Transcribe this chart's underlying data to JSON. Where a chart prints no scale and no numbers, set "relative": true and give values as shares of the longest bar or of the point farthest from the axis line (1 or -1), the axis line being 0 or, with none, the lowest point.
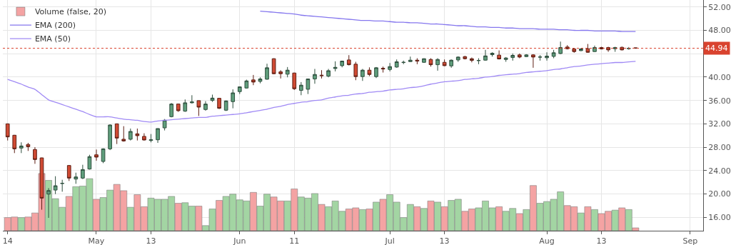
{
  "chart_data": [
    {
      "type": "candlestick",
      "categories": [
        "14",
        null,
        null,
        null,
        null,
        null,
        null,
        null,
        null,
        null,
        null,
        null,
        null,
        "May",
        null,
        null,
        null,
        null,
        null,
        null,
        null,
        "13",
        null,
        null,
        null,
        null,
        null,
        null,
        null,
        null,
        null,
        null,
        null,
        null,
        "Jun",
        null,
        null,
        null,
        null,
        null,
        null,
        null,
        "11",
        null,
        null,
        null,
        null,
        null,
        null,
        null,
        null,
        null,
        null,
        null,
        null,
        null,
        "Jul",
        null,
        null,
        null,
        null,
        null,
        null,
        null,
        "13",
        null,
        null,
        null,
        null,
        null,
        null,
        null,
        null,
        null,
        null,
        null,
        null,
        null,
        null,
        "Aug",
        null,
        null,
        null,
        null,
        null,
        null,
        null,
        "13",
        null,
        null,
        null,
        null,
        null,
        null,
        null,
        null,
        null,
        null,
        null,
        null,
        "Sep",
        null
      ],
      "ohlc": [
        [
          32.0,
          32.05,
          29.15,
          29.76
        ],
        [
          30.05,
          30.1,
          26.99,
          27.72
        ],
        [
          27.85,
          28.83,
          26.99,
          28.21
        ],
        [
          28.46,
          28.74,
          27.36,
          28.09
        ],
        [
          27.6,
          28.0,
          25.15,
          25.89
        ],
        [
          26.17,
          26.2,
          17.3,
          19.28
        ],
        [
          19.97,
          20.99,
          15.9,
          20.58
        ],
        [
          20.66,
          23.03,
          19.97,
          21.4
        ],
        [
          21.78,
          22.42,
          20.38,
          21.82
        ],
        [
          24.87,
          24.9,
          22.22,
          22.71
        ],
        [
          22.54,
          23.64,
          21.73,
          22.91
        ],
        [
          22.71,
          24.99,
          22.54,
          24.17
        ],
        [
          24.26,
          26.7,
          24.17,
          26.38
        ],
        [
          26.7,
          27.6,
          25.68,
          26.3
        ],
        [
          25.56,
          27.8,
          25.27,
          27.72
        ],
        [
          27.72,
          31.9,
          27.5,
          31.8
        ],
        [
          32.0,
          32.05,
          28.54,
          29.56
        ],
        [
          29.36,
          31.6,
          28.95,
          29.07
        ],
        [
          29.36,
          31.19,
          29.15,
          30.7
        ],
        [
          30.29,
          31.19,
          29.15,
          29.97
        ],
        [
          29.85,
          30.38,
          29.15,
          29.23
        ],
        [
          29.15,
          30.25,
          28.83,
          29.27
        ],
        [
          29.27,
          31.2,
          28.74,
          31.19
        ],
        [
          31.31,
          32.82,
          30.87,
          32.62
        ],
        [
          33.23,
          35.56,
          33.11,
          35.39
        ],
        [
          35.39,
          35.45,
          34.05,
          34.25
        ],
        [
          34.17,
          36.17,
          34.05,
          35.6
        ],
        [
          35.6,
          36.9,
          35.48,
          35.76
        ],
        [
          35.97,
          36.0,
          33.35,
          34.86
        ],
        [
          34.45,
          35.88,
          34.25,
          35.39
        ],
        [
          36.0,
          37.0,
          35.76,
          36.41
        ],
        [
          36.37,
          36.4,
          34.54,
          34.66
        ],
        [
          34.33,
          36.0,
          34.2,
          35.92
        ],
        [
          35.8,
          37.9,
          34.66,
          37.3
        ],
        [
          37.52,
          38.4,
          37.1,
          38.33
        ],
        [
          38.13,
          39.56,
          38.05,
          39.35
        ],
        [
          39.52,
          40.37,
          38.62,
          39.15
        ],
        [
          39.27,
          39.96,
          38.94,
          39.68
        ],
        [
          39.64,
          42.29,
          39.56,
          41.6
        ],
        [
          43.15,
          43.2,
          40.5,
          40.58
        ],
        [
          40.9,
          41.19,
          39.76,
          40.58
        ],
        [
          40.5,
          41.72,
          39.96,
          41.19
        ],
        [
          40.7,
          40.75,
          37.8,
          38.01
        ],
        [
          37.72,
          39.15,
          36.9,
          38.62
        ],
        [
          37.92,
          39.7,
          37.1,
          39.68
        ],
        [
          39.68,
          41.4,
          38.86,
          40.45
        ],
        [
          40.33,
          41.19,
          39.76,
          40.25
        ],
        [
          40.17,
          41.4,
          39.96,
          41.1
        ],
        [
          41.47,
          42.7,
          40.98,
          41.67
        ],
        [
          41.96,
          42.82,
          41.67,
          42.74
        ],
        [
          42.94,
          43.76,
          42.0,
          42.12
        ],
        [
          42.21,
          42.62,
          39.47,
          40.09
        ],
        [
          40.09,
          41.4,
          39.35,
          41.19
        ],
        [
          41.19,
          41.67,
          40.17,
          40.45
        ],
        [
          40.09,
          41.72,
          39.84,
          41.6
        ],
        [
          41.51,
          41.8,
          40.78,
          41.39
        ],
        [
          41.31,
          42.41,
          40.98,
          41.8
        ],
        [
          41.72,
          43.02,
          41.6,
          42.62
        ],
        [
          42.49,
          42.82,
          42.21,
          42.53
        ],
        [
          42.66,
          43.51,
          42.62,
          42.9
        ],
        [
          42.9,
          43.23,
          42.21,
          42.74
        ],
        [
          42.53,
          43.2,
          42.45,
          43.15
        ],
        [
          43.02,
          43.23,
          41.8,
          42.12
        ],
        [
          42.12,
          43.23,
          41.1,
          43.02
        ],
        [
          42.53,
          43.02,
          41.88,
          41.96
        ],
        [
          41.92,
          43.02,
          41.6,
          42.9
        ],
        [
          42.94,
          43.55,
          42.62,
          43.43
        ],
        [
          43.51,
          43.63,
          43.02,
          43.15
        ],
        [
          43.15,
          43.35,
          42.53,
          42.86
        ],
        [
          42.82,
          43.23,
          42.21,
          42.86
        ],
        [
          42.9,
          44.66,
          42.82,
          43.63
        ],
        [
          43.84,
          44.25,
          43.51,
          44.09
        ],
        [
          43.76,
          44.57,
          43.02,
          43.11
        ],
        [
          43.02,
          43.43,
          42.62,
          43.27
        ],
        [
          43.35,
          44.04,
          42.82,
          43.72
        ],
        [
          43.8,
          44.04,
          43.23,
          43.43
        ],
        [
          43.51,
          43.92,
          43.43,
          43.8
        ],
        [
          43.8,
          43.92,
          41.6,
          43.43
        ],
        [
          43.41,
          43.76,
          42.82,
          43.45
        ],
        [
          43.31,
          44.25,
          42.82,
          43.59
        ],
        [
          43.55,
          44.66,
          43.23,
          44.17
        ],
        [
          44.04,
          46.08,
          43.92,
          45.06
        ],
        [
          45.15,
          45.47,
          44.74,
          44.86
        ],
        [
          44.82,
          44.94,
          44.17,
          44.37
        ],
        [
          44.53,
          44.94,
          44.45,
          44.82
        ],
        [
          44.86,
          45.67,
          44.17,
          44.25
        ],
        [
          44.37,
          45.39,
          44.33,
          45.06
        ],
        [
          45.06,
          45.19,
          44.74,
          44.82
        ],
        [
          45.06,
          45.19,
          44.33,
          44.66
        ],
        [
          44.86,
          45.19,
          44.33,
          45.06
        ],
        [
          45.1,
          45.22,
          44.57,
          44.66
        ],
        [
          44.86,
          45.15,
          44.7,
          44.94
        ],
        [
          45.02,
          45.04,
          44.9,
          44.94
        ],
        null,
        null,
        null,
        null,
        null,
        null,
        null,
        null,
        null
      ],
      "series": [
        {
          "name": "EMA (200)",
          "type": "line",
          "color": "#8577ee",
          "values": [
            null,
            null,
            null,
            null,
            null,
            null,
            null,
            null,
            null,
            null,
            null,
            null,
            null,
            null,
            null,
            null,
            null,
            null,
            null,
            null,
            null,
            null,
            null,
            null,
            null,
            null,
            null,
            null,
            null,
            null,
            null,
            null,
            null,
            null,
            null,
            null,
            null,
            51.3,
            51.2,
            51.1,
            51.0,
            50.9,
            50.8,
            50.6,
            50.5,
            50.4,
            50.3,
            50.2,
            50.1,
            50.0,
            49.9,
            49.8,
            49.7,
            49.7,
            49.6,
            49.6,
            49.5,
            49.4,
            49.4,
            49.3,
            49.3,
            49.2,
            49.1,
            49.1,
            49.0,
            48.9,
            48.8,
            48.8,
            48.7,
            48.6,
            48.6,
            48.5,
            48.5,
            48.4,
            48.4,
            48.3,
            48.3,
            48.3,
            48.2,
            48.2,
            48.2,
            48.1,
            48.1,
            48.0,
            48.0,
            48.0,
            47.9,
            47.9,
            47.9,
            47.9,
            47.8,
            47.8,
            47.8,
            null,
            null,
            null,
            null,
            null,
            null,
            null,
            null,
            null
          ]
        },
        {
          "name": "EMA (50)",
          "type": "line",
          "color": "#a08af5",
          "values": [
            39.6,
            39.2,
            38.8,
            38.3,
            37.9,
            37.0,
            36.1,
            35.7,
            35.3,
            34.9,
            34.5,
            34.1,
            33.6,
            33.2,
            33.2,
            33.2,
            33.0,
            32.8,
            32.7,
            32.6,
            32.4,
            32.3,
            32.5,
            32.6,
            32.7,
            32.8,
            32.9,
            33.0,
            33.1,
            33.1,
            33.3,
            33.4,
            33.5,
            33.6,
            33.7,
            33.9,
            34.1,
            34.3,
            34.5,
            34.8,
            35.0,
            35.3,
            35.5,
            35.7,
            35.8,
            36.0,
            36.1,
            36.4,
            36.6,
            36.8,
            36.9,
            37.1,
            37.2,
            37.4,
            37.5,
            37.6,
            37.8,
            37.9,
            38.0,
            38.2,
            38.3,
            38.5,
            38.8,
            39.0,
            39.2,
            39.3,
            39.4,
            39.6,
            39.7,
            39.8,
            40.0,
            40.1,
            40.3,
            40.4,
            40.5,
            40.6,
            40.8,
            40.9,
            41.0,
            41.1,
            41.3,
            41.4,
            41.6,
            41.8,
            41.9,
            42.1,
            42.2,
            42.3,
            42.4,
            42.5,
            42.5,
            42.6,
            42.7,
            null,
            null,
            null,
            null,
            null,
            null,
            null,
            null,
            null
          ]
        }
      ],
      "ylim": [
        13.7,
        53.2
      ],
      "yticks": [
        {
          "value": 16,
          "label": "16.00"
        },
        {
          "value": 20,
          "label": "20.00"
        },
        {
          "value": 24,
          "label": "24.00"
        },
        {
          "value": 28,
          "label": "28.00"
        },
        {
          "value": 32,
          "label": "32.00"
        },
        {
          "value": 36,
          "label": "36.00"
        },
        {
          "value": 40,
          "label": "40.00"
        },
        {
          "value": 44,
          "label": null
        },
        {
          "value": 48,
          "label": "48.00"
        },
        {
          "value": 52,
          "label": "52.00"
        }
      ],
      "ref_lines": [
        {
          "axis": "y",
          "value": 44.94,
          "label": "44.94",
          "color": "#d9432f",
          "line_style": "dotted"
        }
      ],
      "grid": true,
      "legend": "top left"
    },
    {
      "type": "bar",
      "relative": true,
      "categories": [
        null,
        null,
        null,
        null,
        null,
        null,
        null,
        null,
        null,
        null,
        null,
        null,
        null,
        null,
        null,
        null,
        null,
        null,
        null,
        null,
        null,
        null,
        null,
        null,
        null,
        null,
        null,
        null,
        null,
        null,
        null,
        null,
        null,
        null,
        null,
        null,
        null,
        null,
        null,
        null,
        null,
        null,
        null,
        null,
        null,
        null,
        null,
        null,
        null,
        null,
        null,
        null,
        null,
        null,
        null,
        null,
        null,
        null,
        null,
        null,
        null,
        null,
        null,
        null,
        null,
        null,
        null,
        null,
        null,
        null,
        null,
        null,
        null,
        null,
        null,
        null,
        null,
        null,
        null,
        null,
        null,
        null,
        null,
        null,
        null,
        null,
        null,
        null,
        null,
        null,
        null,
        null,
        null,
        null,
        null,
        null,
        null,
        null,
        null,
        null,
        null,
        null
      ],
      "legend": "top left",
      "series": [
        {
          "name": "Volume (false, 20)",
          "values": [
            0.23,
            0.24,
            0.23,
            0.24,
            0.31,
            1.0,
            0.88,
            0.56,
            0.41,
            0.6,
            0.77,
            0.78,
            0.91,
            0.55,
            0.58,
            0.71,
            0.81,
            0.7,
            0.41,
            0.63,
            0.42,
            0.57,
            0.55,
            0.55,
            0.6,
            0.48,
            0.49,
            0.43,
            0.43,
            0.09,
            0.38,
            0.53,
            0.6,
            0.64,
            0.54,
            0.52,
            0.67,
            0.43,
            0.64,
            0.59,
            0.52,
            0.52,
            0.73,
            0.59,
            0.57,
            0.65,
            0.46,
            0.42,
            0.52,
            0.34,
            0.38,
            0.4,
            0.37,
            0.38,
            0.5,
            0.55,
            0.63,
            0.5,
            0.23,
            0.46,
            0.42,
            0.39,
            0.52,
            0.5,
            0.42,
            0.53,
            0.55,
            0.34,
            0.38,
            0.4,
            0.52,
            0.4,
            0.42,
            0.34,
            0.39,
            0.3,
            0.37,
            0.79,
            0.48,
            0.51,
            0.55,
            0.68,
            0.44,
            0.42,
            0.31,
            0.42,
            0.37,
            0.3,
            0.34,
            0.36,
            0.4,
            0.37,
            0.05,
            null,
            null,
            null,
            null,
            null,
            null,
            null,
            null,
            null
          ],
          "colors": [
            "#f4a3a3",
            "#f4a3a3",
            "#a3d5a3",
            "#f4a3a3",
            "#f4a3a3",
            "#f4a3a3",
            "#a3d5a3",
            "#a3d5a3",
            "#a3d5a3",
            "#f4a3a3",
            "#a3d5a3",
            "#a3d5a3",
            "#a3d5a3",
            "#f4a3a3",
            "#a3d5a3",
            "#a3d5a3",
            "#f4a3a3",
            "#f4a3a3",
            "#a3d5a3",
            "#f4a3a3",
            "#f4a3a3",
            "#a3d5a3",
            "#a3d5a3",
            "#a3d5a3",
            "#a3d5a3",
            "#f4a3a3",
            "#a3d5a3",
            "#a3d5a3",
            "#f4a3a3",
            "#a3d5a3",
            "#a3d5a3",
            "#f4a3a3",
            "#a3d5a3",
            "#a3d5a3",
            "#a3d5a3",
            "#a3d5a3",
            "#f4a3a3",
            "#a3d5a3",
            "#a3d5a3",
            "#f4a3a3",
            "#f4a3a3",
            "#a3d5a3",
            "#f4a3a3",
            "#a3d5a3",
            "#a3d5a3",
            "#a3d5a3",
            "#f4a3a3",
            "#a3d5a3",
            "#a3d5a3",
            "#a3d5a3",
            "#f4a3a3",
            "#f4a3a3",
            "#a3d5a3",
            "#f4a3a3",
            "#a3d5a3",
            "#f4a3a3",
            "#a3d5a3",
            "#a3d5a3",
            "#a3d5a3",
            "#a3d5a3",
            "#f4a3a3",
            "#a3d5a3",
            "#f4a3a3",
            "#a3d5a3",
            "#f4a3a3",
            "#a3d5a3",
            "#a3d5a3",
            "#f4a3a3",
            "#f4a3a3",
            "#a3d5a3",
            "#a3d5a3",
            "#a3d5a3",
            "#f4a3a3",
            "#a3d5a3",
            "#a3d5a3",
            "#f4a3a3",
            "#a3d5a3",
            "#f4a3a3",
            "#a3d5a3",
            "#a3d5a3",
            "#a3d5a3",
            "#a3d5a3",
            "#f4a3a3",
            "#f4a3a3",
            "#a3d5a3",
            "#f4a3a3",
            "#a3d5a3",
            "#f4a3a3",
            "#f4a3a3",
            "#a3d5a3",
            "#f4a3a3",
            "#a3d5a3",
            "#f4a3a3",
            null,
            null,
            null,
            null,
            null,
            null,
            null,
            null,
            null
          ]
        }
      ]
    }
  ]
}
